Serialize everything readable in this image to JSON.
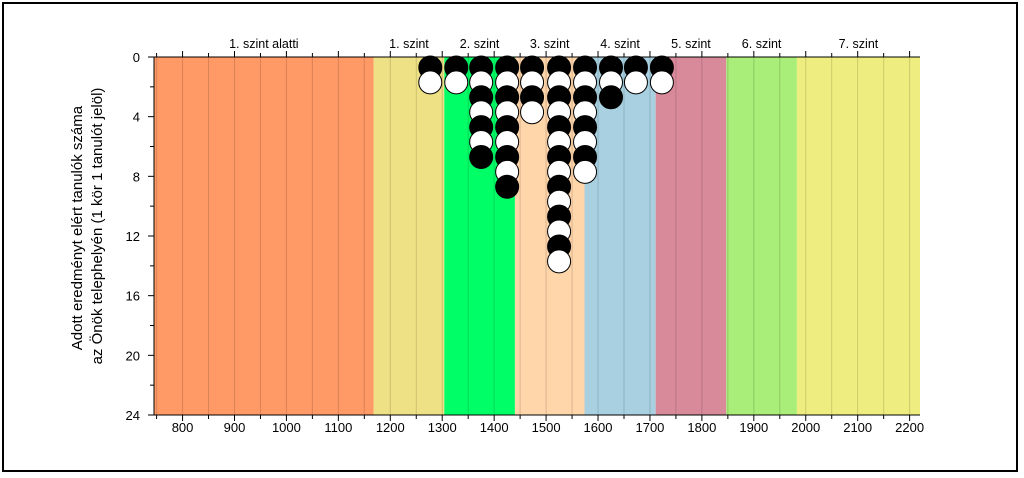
{
  "chart_data": {
    "type": "scatter",
    "ylabel_lines": [
      "Adott eredményt elért tanulók száma",
      "az Önök telephelyén (1 kör 1 tanulót jelöl)"
    ],
    "xlim": [
      745,
      2220
    ],
    "ylim": [
      0,
      24
    ],
    "y_inverted": true,
    "x_ticks": [
      {
        "value": 800,
        "label": "800"
      },
      {
        "value": 900,
        "label": "900"
      },
      {
        "value": 1000,
        "label": "1000"
      },
      {
        "value": 1100,
        "label": "1100"
      },
      {
        "value": 1200,
        "label": "1200"
      },
      {
        "value": 1300,
        "label": "1300"
      },
      {
        "value": 1400,
        "label": "1400"
      },
      {
        "value": 1500,
        "label": "1500"
      },
      {
        "value": 1600,
        "label": "1600"
      },
      {
        "value": 1700,
        "label": "1700"
      },
      {
        "value": 1800,
        "label": "1800"
      },
      {
        "value": 1900,
        "label": "1900"
      },
      {
        "value": 2000,
        "label": "2000"
      },
      {
        "value": 2100,
        "label": "2100"
      },
      {
        "value": 2200,
        "label": "2200"
      }
    ],
    "y_ticks": [
      {
        "value": 0,
        "label": "0"
      },
      {
        "value": 4,
        "label": "4"
      },
      {
        "value": 8,
        "label": "8"
      },
      {
        "value": 12,
        "label": "12"
      },
      {
        "value": 16,
        "label": "16"
      },
      {
        "value": 20,
        "label": "20"
      },
      {
        "value": 24,
        "label": "24"
      }
    ],
    "bands": [
      {
        "label": "1. szint alatti",
        "from": 745,
        "to": 1168,
        "color": "#ff9966"
      },
      {
        "label": "1. szint",
        "from": 1168,
        "to": 1304,
        "color": "#eee185"
      },
      {
        "label": "2. szint",
        "from": 1304,
        "to": 1440,
        "color": "#00ff66"
      },
      {
        "label": "3. szint",
        "from": 1440,
        "to": 1574,
        "color": "#ffd5aa"
      },
      {
        "label": "4. szint",
        "from": 1574,
        "to": 1711,
        "color": "#a8d0e0"
      },
      {
        "label": "5. szint",
        "from": 1711,
        "to": 1847,
        "color": "#d98a9a"
      },
      {
        "label": "6. szint",
        "from": 1847,
        "to": 1983,
        "color": "#a8ee78"
      },
      {
        "label": "7. szint",
        "from": 1983,
        "to": 2220,
        "color": "#eeee80"
      }
    ],
    "marker_colors": {
      "black": "#000000",
      "white": "#ffffff"
    },
    "columns": [
      {
        "x": 1277,
        "count": 2
      },
      {
        "x": 1327,
        "count": 2
      },
      {
        "x": 1375,
        "count": 7
      },
      {
        "x": 1425,
        "count": 9
      },
      {
        "x": 1473,
        "count": 4
      },
      {
        "x": 1525,
        "count": 14
      },
      {
        "x": 1575,
        "count": 8
      },
      {
        "x": 1625,
        "count": 3
      },
      {
        "x": 1673,
        "count": 2
      },
      {
        "x": 1723,
        "count": 2
      }
    ]
  }
}
